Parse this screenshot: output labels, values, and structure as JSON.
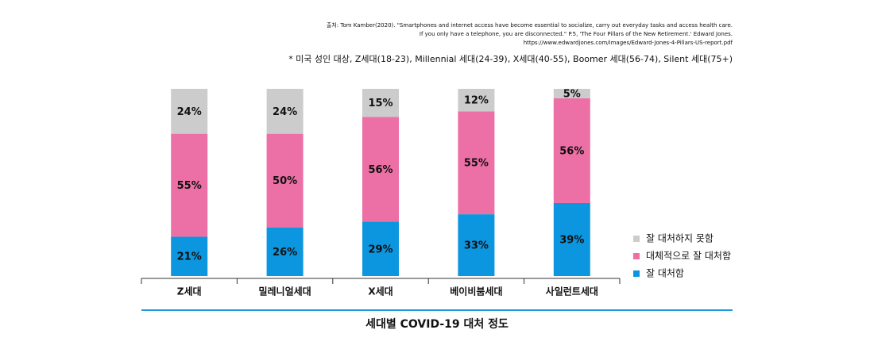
{
  "chart_data": {
    "type": "stacked_bar",
    "title": "세대별 COVID-19 대처 정도",
    "source": [
      "출처: Tom Kamber(2020). \"Smartphones and internet access have become essential to socialize, carry out everyday tasks and access health care.",
      "If you only have a telephone, you are disconnected.\" P.5, 'The Four Pillars of the New Retirement.' Edward Jones.",
      "https://www.edwardjones.com/images/Edward-Jones-4-Pillars-US-report.pdf"
    ],
    "note": "* 미국 성인 대상, Z세대(18-23), Millennial 세대(24-39), X세대(40-55), Boomer 세대(56-74), Silent 세대(75+)",
    "categories": [
      "Z세대",
      "밀레니얼세대",
      "X세대",
      "베이비붐세대",
      "사일런트세대"
    ],
    "series": [
      {
        "name": "잘 대처함",
        "color": "#0b96df",
        "values": [
          21,
          26,
          29,
          33,
          39
        ],
        "value_labels": [
          "21%",
          "26%",
          "29%",
          "33%",
          "39%"
        ]
      },
      {
        "name": "대체적으로 잘 대처함",
        "color": "#ec6fa6",
        "values": [
          55,
          50,
          56,
          55,
          56
        ],
        "value_labels": [
          "55%",
          "50%",
          "56%",
          "55%",
          "56%"
        ]
      },
      {
        "name": "잘 대처하지 못함",
        "color": "#cccccc",
        "values": [
          24,
          24,
          15,
          12,
          5
        ],
        "value_labels": [
          "24%",
          "24%",
          "15%",
          "12%",
          "5%"
        ]
      }
    ]
  }
}
